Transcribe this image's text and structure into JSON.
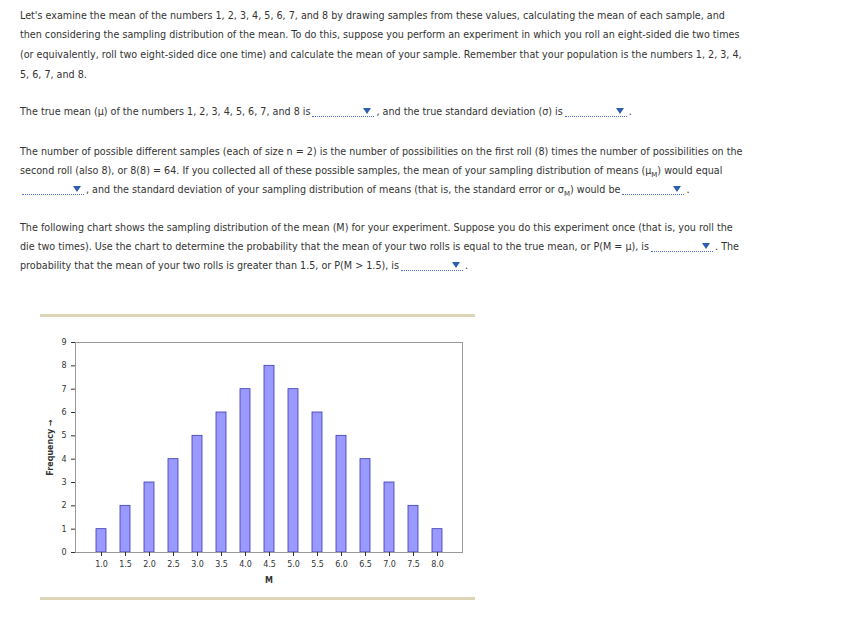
{
  "document": {
    "paragraphs": [
      [
        [
          "Let's examine the mean of the numbers 1, 2, 3, 4, 5, 6, 7, and 8 by drawing samples from these values, calculating the mean of each sample, and"
        ],
        [
          "then considering the sampling distribution of the mean. To do this, suppose you perform an experiment in which you roll an eight-sided die two times"
        ],
        [
          "(or equivalently, roll two eight-sided dice one time) and calculate the mean of your sample. Remember that your population is the numbers 1, 2, 3, 4,"
        ],
        [
          "5, 6, 7, and 8."
        ]
      ],
      [
        [
          "The true mean (μ) of the numbers 1, 2, 3, 4, 5, 6, 7, and 8 is",
          null,
          ", and the true standard deviation (σ) is",
          null,
          "."
        ]
      ],
      [
        [
          "The number of possible different samples (each of size n = 2) is the number of possibilities on the first roll (8) times the number of possibilities on the"
        ],
        [
          "second roll (also 8), or 8(8) = 64. If you collected all of these possible samples, the mean of your sampling distribution of means (μ",
          {
            "sub": "M"
          },
          ") would equal"
        ],
        [
          null,
          ", and the standard deviation of your sampling distribution of means (that is, the standard error or σ",
          {
            "sub": "M"
          },
          ") would be",
          null,
          "."
        ]
      ],
      [
        [
          "The following chart shows the sampling distribution of the mean (M) for your experiment. Suppose you do this experiment once (that is, you roll the"
        ],
        [
          "die two times). Use the chart to determine the probability that the mean of your two rolls is equal to the true mean, or P(M = μ), is",
          null,
          ". The"
        ],
        [
          "probability that the mean of your two rolls is greater than 1.5, or P(M > 1.5), is",
          null,
          "."
        ]
      ]
    ]
  },
  "chart_data": {
    "type": "bar",
    "categories": [
      "1.0",
      "1.5",
      "2.0",
      "2.5",
      "3.0",
      "3.5",
      "4.0",
      "4.5",
      "5.0",
      "5.5",
      "6.0",
      "6.5",
      "7.0",
      "7.5",
      "8.0"
    ],
    "values": [
      1,
      2,
      3,
      4,
      5,
      6,
      7,
      8,
      7,
      6,
      5,
      4,
      3,
      2,
      1
    ],
    "color": "#9999ff",
    "x_label": "M",
    "y_label": "Frequency",
    "ylim": [
      0,
      9
    ],
    "yticks": [
      0,
      1,
      2,
      3,
      4,
      5,
      6,
      7,
      8,
      9
    ],
    "grid": false
  }
}
